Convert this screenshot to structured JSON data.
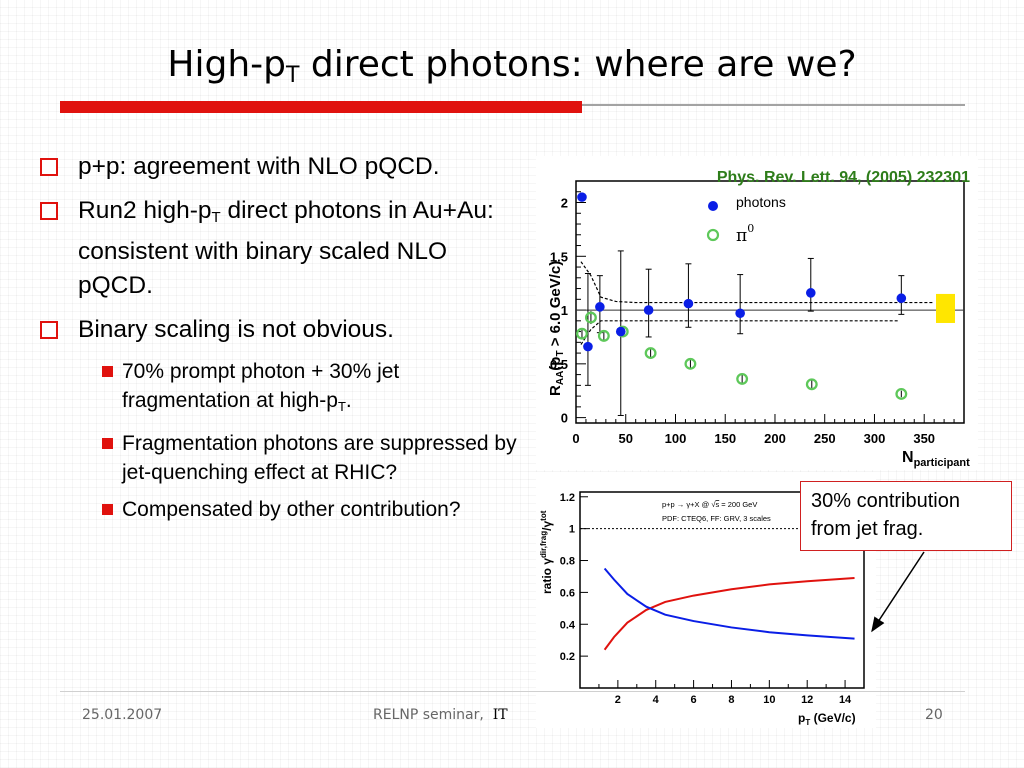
{
  "slide": {
    "title_main": "High-p",
    "title_sub": "T",
    "title_rest": " direct photons: where are we?",
    "bullets": [
      {
        "text": "p+p: agreement with NLO pQCD."
      },
      {
        "pre": "Run2 high-p",
        "sub": "T",
        "post": " direct photons in Au+Au: consistent with binary scaled NLO pQCD."
      },
      {
        "text": "Binary scaling is not obvious."
      }
    ],
    "subbullets": [
      {
        "pre": "70% prompt photon + 30% jet fragmentation at high-p",
        "sub": "T",
        "post": "."
      },
      {
        "text": "Fragmentation photons are suppressed by jet-quenching effect at RHIC?"
      },
      {
        "text": "Compensated by other contribution?"
      }
    ],
    "callout": [
      "30% contribution",
      "from jet frag."
    ],
    "footer": {
      "date": "25.01.2007",
      "seminar": "RELNP seminar,",
      "seminar_cut": "IT",
      "page": "20"
    }
  },
  "colors": {
    "accent_red": "#e0120e",
    "reference_green": "#2e7d1a",
    "photons_blue": "#0a1ee6",
    "pi0_green": "#5ec85a",
    "highlight_yellow": "#ffe600"
  },
  "chart_data": [
    {
      "type": "scatter",
      "title": "Phys. Rev. Lett. 94, (2005) 232301",
      "xlabel_main": "N",
      "xlabel_sub": "participant",
      "ylabel_main": "R",
      "ylabel_sub": "AA",
      "ylabel_rest": "(p",
      "ylabel_sub2": "T",
      "ylabel_end": " > 6.0 GeV/c)",
      "xlim": [
        0,
        390
      ],
      "ylim": [
        -0.05,
        2.2
      ],
      "x_ticks": [
        0,
        50,
        100,
        150,
        200,
        250,
        300,
        350
      ],
      "y_ticks": [
        0,
        0.5,
        1,
        1.5,
        2
      ],
      "y_tick_labels": [
        "0",
        "0.5",
        "1",
        "1.5",
        "2"
      ],
      "legend": [
        {
          "name": "photons",
          "marker": "filled-circle"
        },
        {
          "name": "π",
          "sup": "0",
          "marker": "open-circle"
        }
      ],
      "legend_placement": "top",
      "series": [
        {
          "name": "photons",
          "points": [
            {
              "x": 6,
              "y": 2.05,
              "err_lo": 0,
              "err_hi": 0
            },
            {
              "x": 12,
              "y": 0.66,
              "err_lo": 0.36,
              "err_hi": 0.68
            },
            {
              "x": 24,
              "y": 1.03,
              "err_lo": 0.24,
              "err_hi": 0.29
            },
            {
              "x": 45,
              "y": 0.8,
              "err_lo": 0.78,
              "err_hi": 0.75
            },
            {
              "x": 73,
              "y": 1.0,
              "err_lo": 0.25,
              "err_hi": 0.38
            },
            {
              "x": 113,
              "y": 1.06,
              "err_lo": 0.22,
              "err_hi": 0.37
            },
            {
              "x": 165,
              "y": 0.97,
              "err_lo": 0.19,
              "err_hi": 0.36
            },
            {
              "x": 236,
              "y": 1.16,
              "err_lo": 0.17,
              "err_hi": 0.32
            },
            {
              "x": 327,
              "y": 1.11,
              "err_lo": 0.15,
              "err_hi": 0.21
            }
          ]
        },
        {
          "name": "π0",
          "points": [
            {
              "x": 6,
              "y": 0.78,
              "err": 0.04
            },
            {
              "x": 15,
              "y": 0.93,
              "err": 0.06
            },
            {
              "x": 28,
              "y": 0.76,
              "err": 0.04
            },
            {
              "x": 47,
              "y": 0.8,
              "err": 0.05
            },
            {
              "x": 75,
              "y": 0.6,
              "err": 0.04
            },
            {
              "x": 115,
              "y": 0.5,
              "err": 0.05
            },
            {
              "x": 167,
              "y": 0.36,
              "err": 0.04
            },
            {
              "x": 237,
              "y": 0.31,
              "err": 0.04
            },
            {
              "x": 327,
              "y": 0.22,
              "err": 0.03
            }
          ]
        }
      ],
      "band_upper": [
        [
          5,
          1.45
        ],
        [
          15,
          1.32
        ],
        [
          25,
          1.12
        ],
        [
          40,
          1.08
        ],
        [
          60,
          1.07
        ],
        [
          360,
          1.07
        ]
      ],
      "band_lower": [
        [
          5,
          0.68
        ],
        [
          15,
          0.82
        ],
        [
          25,
          0.9
        ],
        [
          40,
          0.9
        ],
        [
          60,
          0.9
        ],
        [
          325,
          0.9
        ]
      ],
      "reference_line": 1,
      "scale_box": {
        "y_lo": 0.88,
        "y_hi": 1.15
      }
    },
    {
      "type": "line",
      "ylabel": "ratio γ",
      "ylabel_sup": "dir,frag",
      "ylabel_slash": "/γ",
      "ylabel_sup2": "tot",
      "xlabel_main": "p",
      "xlabel_sub": "T",
      "xlabel_unit": " (GeV/c)",
      "legend_lines": [
        {
          "pre": "p+p → γ+X @ ",
          "root": "s",
          "post": " = 200 GeV"
        },
        {
          "text": "PDF: CTEQ6, FF: GRV, 3 scales"
        }
      ],
      "xlim": [
        0,
        15
      ],
      "ylim": [
        0,
        1.23
      ],
      "x_ticks": [
        2,
        4,
        6,
        8,
        10,
        12,
        14
      ],
      "y_ticks": [
        0.2,
        0.4,
        0.6,
        0.8,
        1,
        1.2
      ],
      "y_tick_labels": [
        "0.2",
        "0.4",
        "0.6",
        "0.8",
        "1",
        "1.2"
      ],
      "reference_line": 1,
      "series": [
        {
          "name": "fragmentation",
          "x": [
            1.3,
            1.8,
            2.5,
            3.5,
            4.5,
            6,
            8,
            10,
            12,
            14.5
          ],
          "y": [
            0.24,
            0.32,
            0.41,
            0.49,
            0.54,
            0.58,
            0.62,
            0.65,
            0.67,
            0.69
          ]
        },
        {
          "name": "direct",
          "x": [
            1.3,
            1.8,
            2.5,
            3.5,
            4.5,
            6,
            8,
            10,
            12,
            14.5
          ],
          "y": [
            0.75,
            0.68,
            0.59,
            0.51,
            0.46,
            0.42,
            0.38,
            0.35,
            0.33,
            0.31
          ]
        }
      ]
    }
  ]
}
